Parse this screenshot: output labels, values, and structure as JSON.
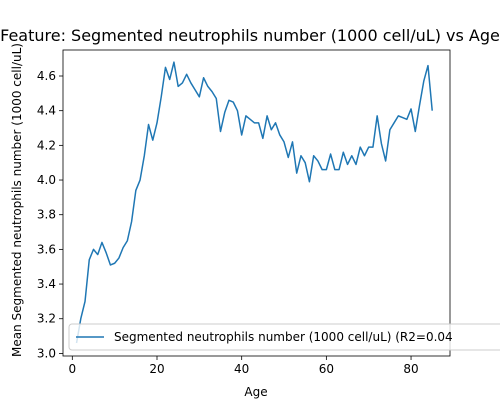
{
  "chart_data": {
    "type": "line",
    "title": "Feature: Segmented neutrophils number (1000 cell/uL) vs Age",
    "xlabel": "Age",
    "ylabel": "Mean Segmented neutrophils number (1000 cell/uL)",
    "xlim": [
      -2.2,
      89.2
    ],
    "ylim": [
      2.985,
      4.75
    ],
    "x_ticks": [
      0,
      20,
      40,
      60,
      80
    ],
    "y_ticks": [
      3.0,
      3.2,
      3.4,
      3.6,
      3.8,
      4.0,
      4.2,
      4.4,
      4.6
    ],
    "x_tick_labels": [
      "0",
      "20",
      "40",
      "60",
      "80"
    ],
    "y_tick_labels": [
      "3.0",
      "3.2",
      "3.4",
      "3.6",
      "3.8",
      "4.0",
      "4.2",
      "4.4",
      "4.6"
    ],
    "grid": false,
    "legend_position": "lower-right",
    "series": [
      {
        "name": "Segmented neutrophils number (1000 cell/uL) (R2=0.04",
        "color": "#1f77b4",
        "x": [
          1,
          2,
          3,
          4,
          5,
          6,
          7,
          8,
          9,
          10,
          11,
          12,
          13,
          14,
          15,
          16,
          17,
          18,
          19,
          20,
          21,
          22,
          23,
          24,
          25,
          26,
          27,
          28,
          29,
          30,
          31,
          32,
          33,
          34,
          35,
          36,
          37,
          38,
          39,
          40,
          41,
          42,
          43,
          44,
          45,
          46,
          47,
          48,
          49,
          50,
          51,
          52,
          53,
          54,
          55,
          56,
          57,
          58,
          59,
          60,
          61,
          62,
          63,
          64,
          65,
          66,
          67,
          68,
          69,
          70,
          71,
          72,
          73,
          74,
          75,
          76,
          77,
          78,
          79,
          80,
          81,
          82,
          83,
          84,
          85
        ],
        "values": [
          3.06,
          3.2,
          3.3,
          3.54,
          3.6,
          3.57,
          3.64,
          3.58,
          3.51,
          3.52,
          3.55,
          3.61,
          3.65,
          3.76,
          3.94,
          4.0,
          4.14,
          4.32,
          4.23,
          4.33,
          4.48,
          4.65,
          4.58,
          4.68,
          4.54,
          4.56,
          4.61,
          4.56,
          4.52,
          4.48,
          4.59,
          4.54,
          4.51,
          4.47,
          4.28,
          4.39,
          4.46,
          4.45,
          4.4,
          4.26,
          4.37,
          4.35,
          4.33,
          4.33,
          4.24,
          4.37,
          4.29,
          4.33,
          4.26,
          4.22,
          4.13,
          4.22,
          4.04,
          4.14,
          4.1,
          3.99,
          4.14,
          4.11,
          4.06,
          4.06,
          4.15,
          4.06,
          4.06,
          4.16,
          4.09,
          4.14,
          4.09,
          4.19,
          4.14,
          4.19,
          4.19,
          4.37,
          4.21,
          4.11,
          4.29,
          4.33,
          4.37,
          4.36,
          4.35,
          4.41,
          4.28,
          4.43,
          4.57,
          4.66,
          4.4
        ]
      }
    ]
  }
}
